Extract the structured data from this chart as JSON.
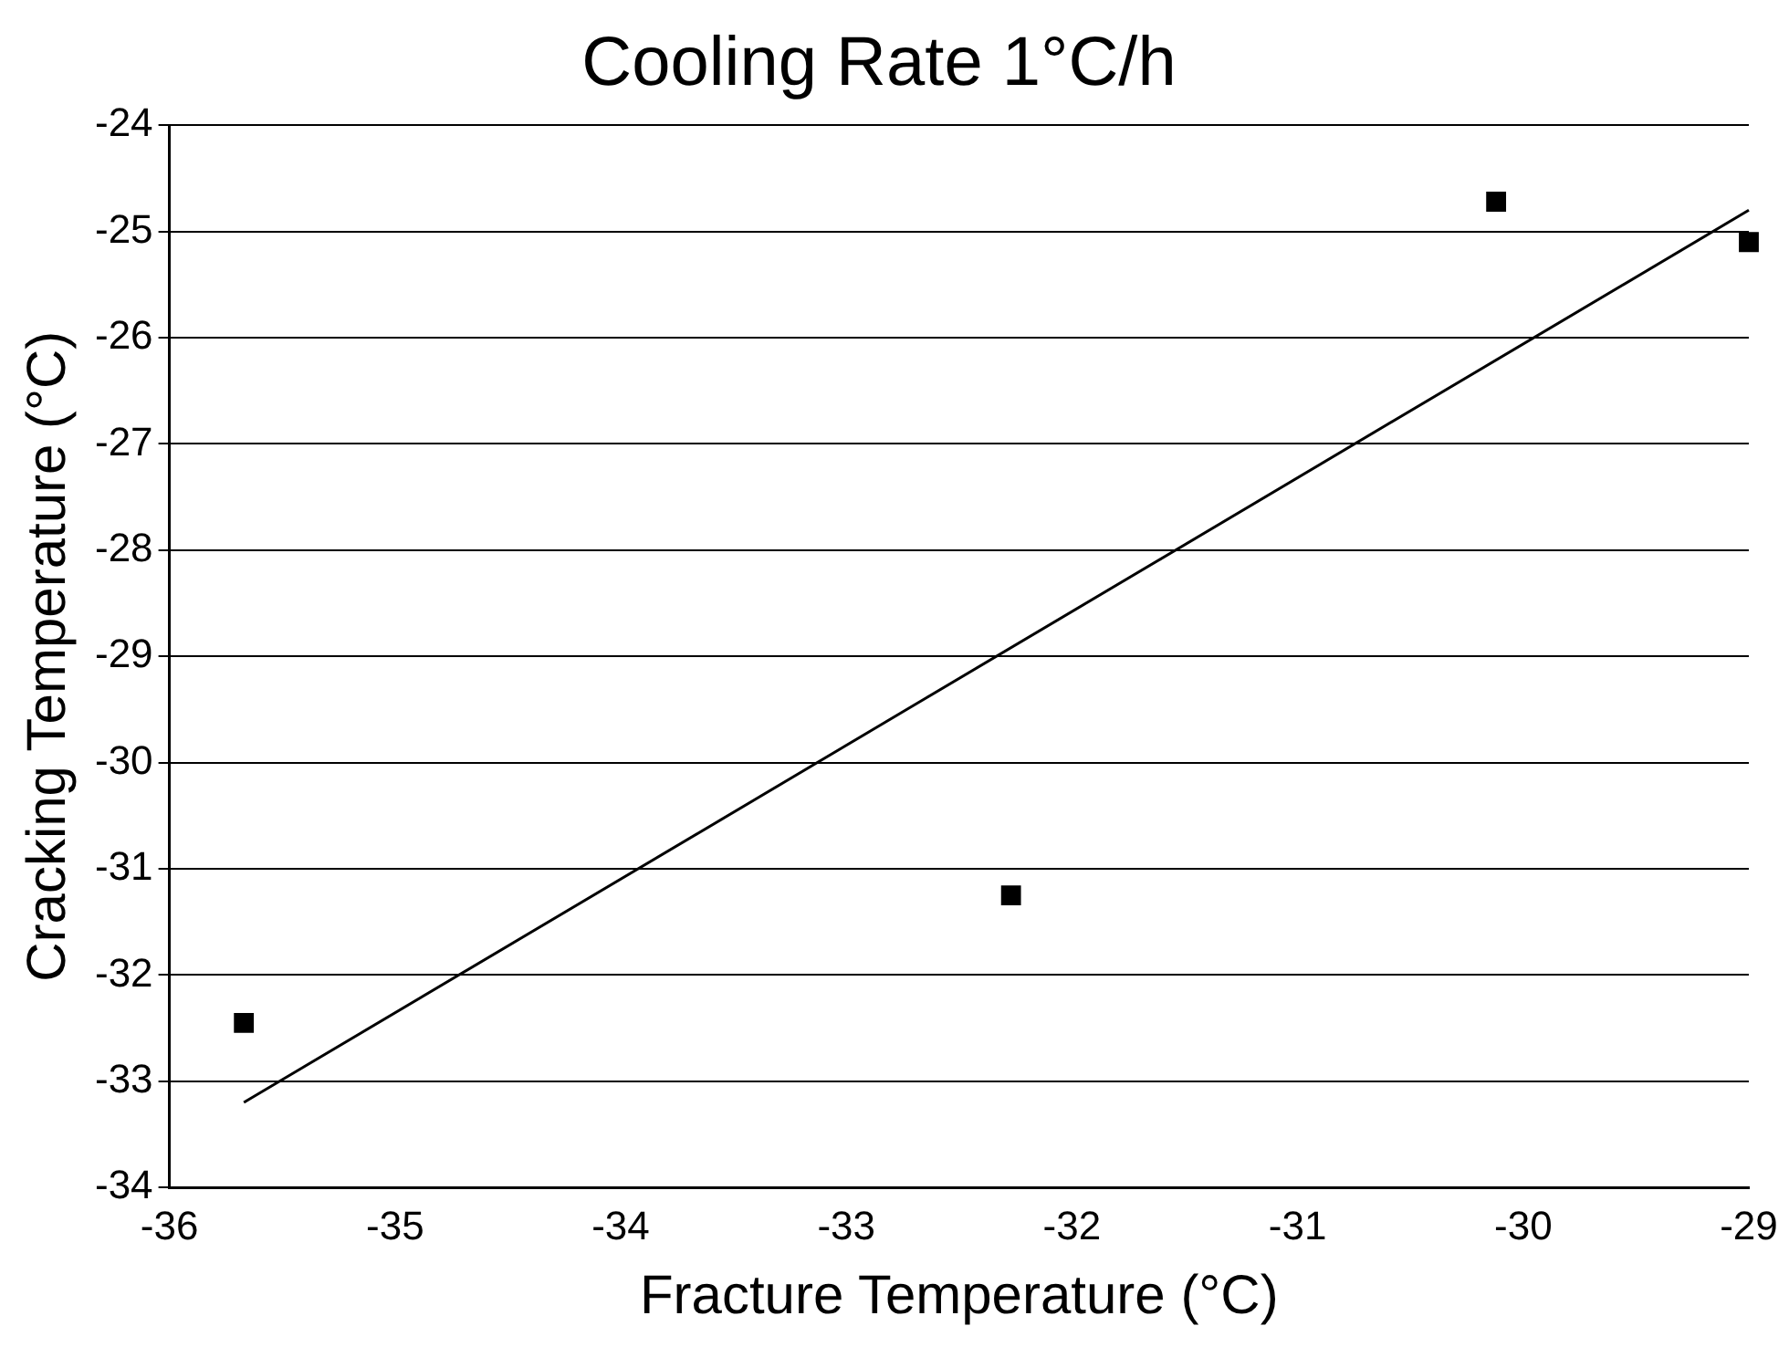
{
  "chart_data": {
    "type": "scatter",
    "title": "Cooling Rate 1°C/h",
    "xlabel": "Fracture Temperature (°C)",
    "ylabel": "Cracking Temperature (°C)",
    "xlim": [
      -36,
      -29
    ],
    "xticks": [
      -36,
      -35,
      -34,
      -33,
      -32,
      -31,
      -30,
      -29
    ],
    "ylim": [
      -34,
      -24
    ],
    "yticks": [
      -34,
      -33,
      -32,
      -31,
      -30,
      -29,
      -28,
      -27,
      -26,
      -25,
      -24
    ],
    "grid": "y",
    "legend": false,
    "marker": "square",
    "series": [
      {
        "color": "#000000",
        "x": [
          -35.67,
          -32.27,
          -30.12,
          -29.0
        ],
        "values": [
          -32.45,
          -31.25,
          -24.72,
          -25.1
        ]
      },
      {
        "type": "line",
        "color": "#000000",
        "marker": "none",
        "line_style": "solid",
        "x": [
          -35.67,
          -29.0
        ],
        "values": [
          -33.2,
          -24.8
        ]
      }
    ]
  }
}
